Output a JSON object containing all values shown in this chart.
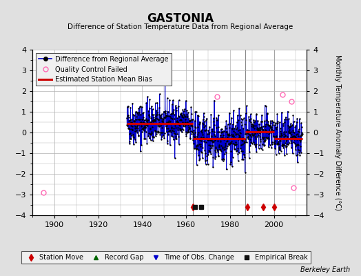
{
  "title": "GASTONIA",
  "subtitle": "Difference of Station Temperature Data from Regional Average",
  "ylabel": "Monthly Temperature Anomaly Difference (°C)",
  "xlabel_credit": "Berkeley Earth",
  "xlim": [
    1890,
    2015
  ],
  "ylim": [
    -4,
    4
  ],
  "yticks": [
    -4,
    -3,
    -2,
    -1,
    0,
    1,
    2,
    3,
    4
  ],
  "xticks": [
    1900,
    1920,
    1940,
    1960,
    1980,
    2000
  ],
  "bg_color": "#e0e0e0",
  "plot_bg_color": "#ffffff",
  "grid_color": "#b0b0b0",
  "seed": 42,
  "segment1_start": 1933,
  "segment1_end": 1963,
  "segment1_bias": 0.45,
  "segment2_start": 1963,
  "segment2_end": 1987,
  "segment2_bias": -0.3,
  "segment3_start": 1987,
  "segment3_end": 2000,
  "segment3_bias": 0.05,
  "segment4_start": 2000,
  "segment4_end": 2013,
  "segment4_bias": -0.3,
  "qc_fail_points": [
    [
      1895,
      -2.9
    ],
    [
      1974,
      1.75
    ],
    [
      2004,
      1.85
    ],
    [
      2008,
      1.5
    ],
    [
      2009,
      -2.65
    ]
  ],
  "station_move_years": [
    1963,
    1988,
    1995,
    2000
  ],
  "empirical_break_years": [
    1964,
    1967
  ],
  "vertical_lines_years": [
    1963,
    1987,
    2000
  ],
  "bias_line_color": "#cc0000",
  "data_line_color": "#0000cc",
  "data_marker_color": "#000000",
  "station_move_color": "#cc0000",
  "empirical_break_color": "#111111",
  "record_gap_color": "#006600",
  "tobs_color": "#0000cc",
  "qc_color": "#ff69b4"
}
